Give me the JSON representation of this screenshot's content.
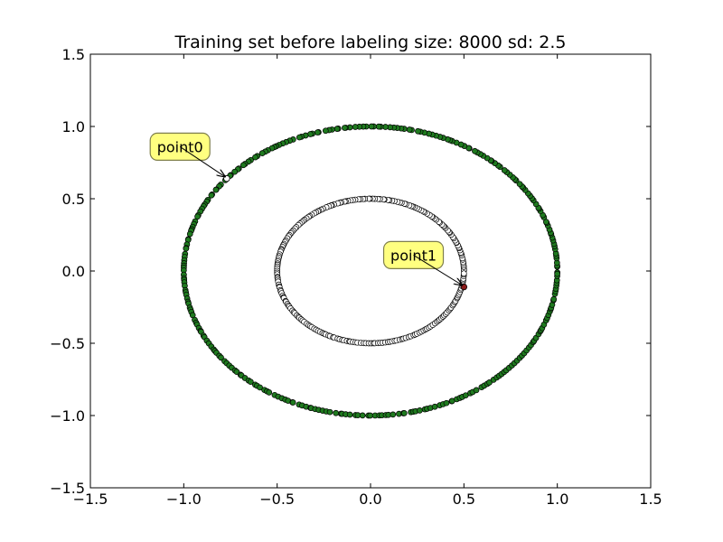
{
  "chart_data": {
    "type": "scatter",
    "title": "Training set before labeling size: 8000 sd: 2.5",
    "xlabel": "",
    "ylabel": "",
    "xlim": [
      -1.5,
      1.5
    ],
    "ylim": [
      -1.5,
      1.5
    ],
    "xticks": [
      -1.5,
      -1.0,
      -0.5,
      0.0,
      0.5,
      1.0,
      1.5
    ],
    "yticks": [
      -1.5,
      -1.0,
      -0.5,
      0.0,
      0.5,
      1.0,
      1.5
    ],
    "xtick_labels": [
      "−1.5",
      "−1.0",
      "−0.5",
      "0.0",
      "0.5",
      "1.0",
      "1.5"
    ],
    "ytick_labels": [
      "−1.5",
      "−1.0",
      "−0.5",
      "0.0",
      "0.5",
      "1.0",
      "1.5"
    ],
    "grid": false,
    "series": [
      {
        "radius": 1.0,
        "count": 300,
        "marker_fill": "#1f7a1f",
        "marker_edge": "#000000"
      },
      {
        "radius": 0.5,
        "count": 240,
        "marker_fill": "#ffffff",
        "marker_edge": "#000000"
      }
    ],
    "annotations": [
      {
        "text": "point0",
        "point": [
          -0.77,
          0.64
        ],
        "label_at": [
          -1.02,
          0.86
        ],
        "point_fill": "#ffffff"
      },
      {
        "text": "point1",
        "point": [
          0.5,
          -0.11
        ],
        "label_at": [
          0.23,
          0.11
        ],
        "point_fill": "#8b1a1a"
      }
    ],
    "colors": {
      "annotation_box": "#ffff80",
      "annotation_edge": "#7f7f4c"
    }
  }
}
